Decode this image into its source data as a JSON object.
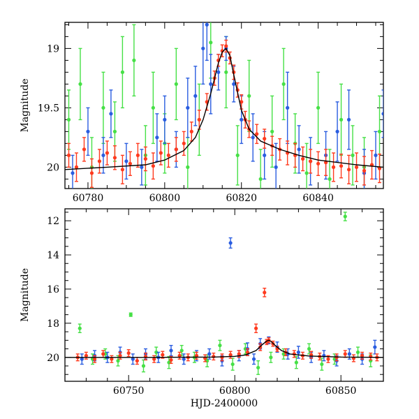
{
  "chart_data": [
    {
      "type": "scatter",
      "panel": "top",
      "xlabel": "",
      "ylabel": "Magnitude",
      "xlim": [
        60774,
        60857
      ],
      "ylim": [
        20.18,
        18.78
      ],
      "y_inverted": true,
      "xticks": [
        60780,
        60800,
        60820,
        60840
      ],
      "yticks": [
        19,
        19.5,
        20
      ],
      "xtick_labels": [
        "60780",
        "60800",
        "60820",
        "60840"
      ],
      "ytick_labels": [
        "19",
        "19.5",
        "20"
      ],
      "grid": false,
      "legend": "none",
      "model_curve": {
        "color": "#000000",
        "x": [
          60774,
          60785,
          60795,
          60800,
          60805,
          60808,
          60810,
          60812,
          60814,
          60815,
          60816,
          60817,
          60818,
          60819,
          60820,
          60822,
          60825,
          60830,
          60835,
          60840,
          60850,
          60857
        ],
        "y": [
          20.02,
          20.0,
          19.98,
          19.94,
          19.86,
          19.75,
          19.6,
          19.38,
          19.12,
          19.03,
          19.0,
          19.06,
          19.22,
          19.37,
          19.52,
          19.68,
          19.78,
          19.85,
          19.9,
          19.94,
          19.98,
          20.0
        ]
      },
      "series": [
        {
          "color": "#ff3a1e",
          "x": [
            60775,
            60777,
            60779,
            60781,
            60783,
            60785,
            60787,
            60789,
            60791,
            60793,
            60795,
            60797,
            60799,
            60801,
            60803,
            60805,
            60807,
            60809,
            60811,
            60813,
            60814,
            60815,
            60816,
            60817,
            60818,
            60819,
            60820,
            60821,
            60822,
            60824,
            60826,
            60828,
            60830,
            60832,
            60834,
            60836,
            60838,
            60840,
            60842,
            60844,
            60846,
            60848,
            60850,
            60852,
            60854,
            60856
          ],
          "y": [
            19.9,
            20.0,
            19.85,
            20.05,
            19.95,
            19.88,
            19.92,
            20.02,
            19.97,
            19.9,
            19.93,
            19.99,
            19.88,
            19.9,
            19.85,
            19.8,
            19.7,
            19.6,
            19.45,
            19.25,
            19.1,
            19.02,
            18.98,
            19.08,
            19.2,
            19.35,
            19.45,
            19.6,
            19.68,
            19.72,
            19.76,
            19.82,
            19.85,
            19.88,
            19.9,
            19.93,
            19.95,
            19.97,
            19.96,
            20.0,
            19.99,
            20.02,
            20.0,
            20.03,
            19.98,
            20.01
          ],
          "err": [
            0.1,
            0.12,
            0.1,
            0.12,
            0.1,
            0.1,
            0.1,
            0.12,
            0.1,
            0.1,
            0.1,
            0.11,
            0.1,
            0.1,
            0.1,
            0.1,
            0.08,
            0.08,
            0.07,
            0.06,
            0.05,
            0.05,
            0.05,
            0.05,
            0.06,
            0.06,
            0.06,
            0.07,
            0.07,
            0.08,
            0.08,
            0.08,
            0.09,
            0.1,
            0.1,
            0.1,
            0.1,
            0.1,
            0.11,
            0.12,
            0.1,
            0.12,
            0.12,
            0.12,
            0.12,
            0.12
          ]
        },
        {
          "color": "#2a5de0",
          "x": [
            60776,
            60780,
            60784,
            60786,
            60790,
            60794,
            60798,
            60800,
            60803,
            60806,
            60808,
            60810,
            60811,
            60812,
            60814,
            60816,
            60818,
            60820,
            60823,
            60826,
            60829,
            60832,
            60835,
            60838,
            60842,
            60845,
            60848,
            60852,
            60855,
            60857
          ],
          "y": [
            20.05,
            19.7,
            19.9,
            19.55,
            19.95,
            20.0,
            19.75,
            19.6,
            19.85,
            19.5,
            19.4,
            19.0,
            18.8,
            19.3,
            19.2,
            19.0,
            19.3,
            19.6,
            19.75,
            19.9,
            20.0,
            19.5,
            19.85,
            19.95,
            19.9,
            19.7,
            19.6,
            20.05,
            19.9,
            19.55
          ],
          "err": [
            0.15,
            0.2,
            0.15,
            0.2,
            0.15,
            0.15,
            0.2,
            0.2,
            0.15,
            0.25,
            0.25,
            0.3,
            0.3,
            0.25,
            0.15,
            0.1,
            0.15,
            0.2,
            0.2,
            0.2,
            0.2,
            0.3,
            0.2,
            0.2,
            0.2,
            0.25,
            0.25,
            0.2,
            0.2,
            0.2
          ]
        },
        {
          "color": "#46e046",
          "x": [
            60775,
            60778,
            60781,
            60784,
            60787,
            60789,
            60792,
            60795,
            60797,
            60800,
            60803,
            60806,
            60809,
            60812,
            60816,
            60819,
            60822,
            60825,
            60828,
            60831,
            60834,
            60837,
            60840,
            60843,
            60846,
            60849,
            60852,
            60856
          ],
          "y": [
            19.6,
            19.3,
            20.0,
            19.5,
            19.7,
            19.2,
            19.1,
            19.9,
            19.5,
            19.8,
            19.3,
            20.0,
            19.6,
            18.95,
            19.2,
            19.9,
            19.4,
            20.1,
            19.7,
            19.3,
            19.8,
            20.05,
            19.5,
            20.1,
            19.6,
            19.9,
            20.0,
            19.7
          ],
          "err": [
            0.25,
            0.3,
            0.25,
            0.3,
            0.25,
            0.3,
            0.3,
            0.25,
            0.3,
            0.25,
            0.3,
            0.25,
            0.3,
            0.3,
            0.3,
            0.25,
            0.3,
            0.25,
            0.3,
            0.3,
            0.25,
            0.25,
            0.3,
            0.25,
            0.3,
            0.25,
            0.25,
            0.3
          ]
        }
      ]
    },
    {
      "type": "scatter",
      "panel": "bottom",
      "xlabel": "HJD-2400000",
      "ylabel": "Magnitude",
      "xlim": [
        60720,
        60870
      ],
      "ylim": [
        21.4,
        11.3
      ],
      "y_inverted": true,
      "xticks": [
        60750,
        60800,
        60850
      ],
      "yticks": [
        12,
        14,
        16,
        18,
        20
      ],
      "xtick_labels": [
        "60750",
        "60800",
        "60850"
      ],
      "ytick_labels": [
        "12",
        "14",
        "16",
        "18",
        "20"
      ],
      "grid": false,
      "legend": "none",
      "model_curve": {
        "color": "#000000",
        "x": [
          60720,
          60760,
          60790,
          60800,
          60805,
          60810,
          60813,
          60815,
          60816,
          60817,
          60819,
          60822,
          60826,
          60835,
          60850,
          60870
        ],
        "y": [
          20.0,
          20.0,
          19.98,
          19.94,
          19.86,
          19.6,
          19.25,
          19.05,
          19.0,
          19.06,
          19.3,
          19.6,
          19.8,
          19.92,
          19.98,
          20.0
        ]
      },
      "series": [
        {
          "color": "#ff3a1e",
          "x": [
            60726,
            60730,
            60734,
            60738,
            60742,
            60746,
            60750,
            60754,
            60758,
            60762,
            60766,
            60770,
            60774,
            60778,
            60782,
            60786,
            60790,
            60794,
            60798,
            60802,
            60806,
            60810,
            60812,
            60814,
            60815,
            60816,
            60818,
            60820,
            60824,
            60828,
            60832,
            60836,
            60840,
            60844,
            60848,
            60852,
            60856,
            60860,
            60864,
            60867
          ],
          "y": [
            20.0,
            19.9,
            20.1,
            19.8,
            20.1,
            19.9,
            19.75,
            20.2,
            19.95,
            20.1,
            19.85,
            20.15,
            19.9,
            20.0,
            19.9,
            20.05,
            19.95,
            20.0,
            19.85,
            19.8,
            19.7,
            18.3,
            19.4,
            16.2,
            19.1,
            19.0,
            19.2,
            19.5,
            19.7,
            19.8,
            19.9,
            19.85,
            19.95,
            20.1,
            20.0,
            19.8,
            20.05,
            19.9,
            19.95,
            20.0
          ],
          "err": [
            0.2,
            0.2,
            0.2,
            0.2,
            0.2,
            0.2,
            0.2,
            0.2,
            0.2,
            0.2,
            0.2,
            0.2,
            0.2,
            0.2,
            0.2,
            0.2,
            0.2,
            0.2,
            0.2,
            0.2,
            0.2,
            0.25,
            0.2,
            0.25,
            0.15,
            0.15,
            0.15,
            0.15,
            0.2,
            0.2,
            0.2,
            0.2,
            0.2,
            0.2,
            0.2,
            0.2,
            0.2,
            0.2,
            0.2,
            0.2
          ]
        },
        {
          "color": "#2a5de0",
          "x": [
            60728,
            60734,
            60740,
            60746,
            60752,
            60758,
            60764,
            60770,
            60776,
            60782,
            60788,
            60794,
            60798,
            60802,
            60806,
            60809,
            60812,
            60816,
            60820,
            60825,
            60830,
            60836,
            60842,
            60848,
            60854,
            60860,
            60866
          ],
          "y": [
            20.1,
            19.9,
            20.0,
            19.7,
            20.1,
            19.8,
            20.0,
            19.6,
            20.1,
            19.9,
            19.8,
            20.2,
            13.3,
            19.9,
            19.5,
            20.1,
            19.2,
            19.0,
            19.4,
            19.8,
            19.7,
            20.0,
            19.9,
            20.2,
            19.8,
            20.1,
            19.4
          ],
          "err": [
            0.3,
            0.3,
            0.3,
            0.3,
            0.3,
            0.3,
            0.3,
            0.3,
            0.3,
            0.3,
            0.3,
            0.3,
            0.3,
            0.3,
            0.35,
            0.3,
            0.3,
            0.2,
            0.3,
            0.3,
            0.35,
            0.3,
            0.3,
            0.3,
            0.3,
            0.3,
            0.4
          ]
        },
        {
          "color": "#46e046",
          "x": [
            60727,
            60733,
            60739,
            60745,
            60751,
            60757,
            60763,
            60769,
            60775,
            60781,
            60787,
            60793,
            60799,
            60805,
            60811,
            60817,
            60823,
            60829,
            60835,
            60841,
            60847,
            60852,
            60858,
            60864
          ],
          "y": [
            18.3,
            20.1,
            19.8,
            20.2,
            17.5,
            20.5,
            19.7,
            20.3,
            19.6,
            20.0,
            20.2,
            19.3,
            20.4,
            19.5,
            20.6,
            20.0,
            19.8,
            20.3,
            19.5,
            20.4,
            20.1,
            11.75,
            19.7,
            20.2
          ],
          "err": [
            0.25,
            0.3,
            0.3,
            0.3,
            0.1,
            0.35,
            0.3,
            0.35,
            0.3,
            0.3,
            0.35,
            0.3,
            0.35,
            0.3,
            0.4,
            0.3,
            0.3,
            0.35,
            0.3,
            0.35,
            0.3,
            0.25,
            0.3,
            0.35
          ]
        }
      ]
    }
  ]
}
